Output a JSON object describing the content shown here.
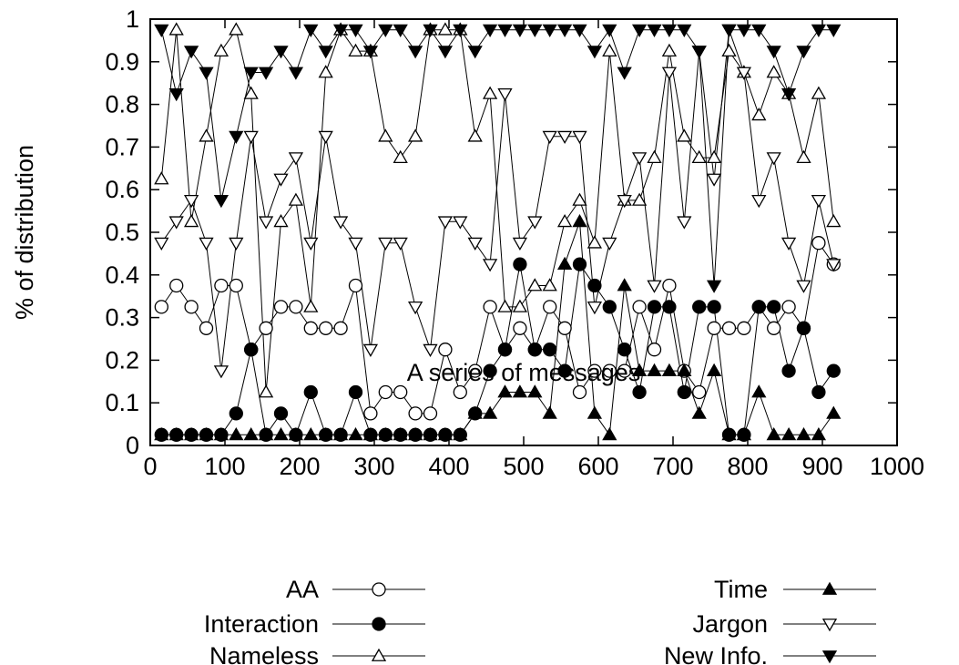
{
  "chart_data": {
    "type": "line",
    "title": "",
    "xlabel": "A series of messages",
    "ylabel": "% of distribution",
    "xlim": [
      0,
      1000
    ],
    "ylim": [
      0,
      1
    ],
    "xticks": [
      "0",
      "100",
      "200",
      "300",
      "400",
      "500",
      "600",
      "700",
      "800",
      "900",
      "1000"
    ],
    "yticks": [
      "0",
      "0.1",
      "0.2",
      "0.3",
      "0.4",
      "0.5",
      "0.6",
      "0.7",
      "0.8",
      "0.9",
      "1"
    ],
    "grid": false,
    "legend_position": "bottom",
    "x": [
      15,
      35,
      55,
      75,
      95,
      115,
      135,
      155,
      175,
      195,
      215,
      235,
      255,
      275,
      295,
      315,
      335,
      355,
      375,
      395,
      415,
      435,
      455,
      475,
      495,
      515,
      535,
      555,
      575,
      595,
      615,
      635,
      655,
      675,
      695,
      715,
      735,
      755,
      775,
      795,
      815,
      835,
      855,
      875,
      895,
      915
    ],
    "series": [
      {
        "name": "AA",
        "marker": "circle-open",
        "values": [
          0.325,
          0.375,
          0.325,
          0.275,
          0.375,
          0.375,
          0.225,
          0.275,
          0.325,
          0.325,
          0.275,
          0.275,
          0.275,
          0.375,
          0.075,
          0.125,
          0.125,
          0.075,
          0.075,
          0.225,
          0.125,
          0.175,
          0.325,
          0.225,
          0.275,
          0.225,
          0.325,
          0.275,
          0.125,
          0.175,
          0.175,
          0.175,
          0.325,
          0.225,
          0.375,
          0.175,
          0.125,
          0.275,
          0.275,
          0.275,
          0.325,
          0.275,
          0.325,
          0.275,
          0.475,
          0.425
        ]
      },
      {
        "name": "Interaction",
        "marker": "circle-filled",
        "values": [
          0.025,
          0.025,
          0.025,
          0.025,
          0.025,
          0.075,
          0.225,
          0.025,
          0.075,
          0.025,
          0.125,
          0.025,
          0.025,
          0.125,
          0.025,
          0.025,
          0.025,
          0.025,
          0.025,
          0.025,
          0.025,
          0.075,
          0.175,
          0.225,
          0.425,
          0.225,
          0.225,
          0.175,
          0.425,
          0.375,
          0.325,
          0.225,
          0.125,
          0.325,
          0.325,
          0.125,
          0.325,
          0.325,
          0.025,
          0.025,
          0.325,
          0.325,
          0.175,
          0.275,
          0.125,
          0.175
        ]
      },
      {
        "name": "Nameless",
        "marker": "triangle-up-open",
        "values": [
          0.625,
          0.975,
          0.525,
          0.725,
          0.925,
          0.975,
          0.825,
          0.125,
          0.525,
          0.575,
          0.325,
          0.875,
          0.975,
          0.925,
          0.925,
          0.725,
          0.675,
          0.725,
          0.975,
          0.975,
          0.975,
          0.725,
          0.825,
          0.325,
          0.325,
          0.375,
          0.375,
          0.525,
          0.575,
          0.475,
          0.925,
          0.575,
          0.575,
          0.675,
          0.925,
          0.725,
          0.675,
          0.675,
          0.925,
          0.875,
          0.775,
          0.875,
          0.825,
          0.675,
          0.825,
          0.525
        ]
      },
      {
        "name": "Time",
        "marker": "triangle-up-filled",
        "values": [
          0.025,
          0.025,
          0.025,
          0.025,
          0.025,
          0.025,
          0.025,
          0.025,
          0.025,
          0.025,
          0.025,
          0.025,
          0.025,
          0.025,
          0.025,
          0.025,
          0.025,
          0.025,
          0.025,
          0.025,
          0.025,
          0.075,
          0.075,
          0.125,
          0.125,
          0.125,
          0.075,
          0.425,
          0.525,
          0.075,
          0.025,
          0.375,
          0.175,
          0.175,
          0.175,
          0.175,
          0.075,
          0.175,
          0.025,
          0.025,
          0.125,
          0.025,
          0.025,
          0.025,
          0.025,
          0.075
        ]
      },
      {
        "name": "Jargon",
        "marker": "triangle-down-open",
        "values": [
          0.475,
          0.525,
          0.575,
          0.475,
          0.175,
          0.475,
          0.725,
          0.525,
          0.625,
          0.675,
          0.475,
          0.725,
          0.525,
          0.475,
          0.225,
          0.475,
          0.475,
          0.325,
          0.225,
          0.525,
          0.525,
          0.475,
          0.425,
          0.825,
          0.475,
          0.525,
          0.725,
          0.725,
          0.725,
          0.325,
          0.475,
          0.575,
          0.675,
          0.375,
          0.875,
          0.525,
          0.925,
          0.625,
          0.975,
          0.875,
          0.575,
          0.675,
          0.475,
          0.375,
          0.575,
          0.425
        ]
      },
      {
        "name": "New Info.",
        "marker": "triangle-down-filled",
        "values": [
          0.975,
          0.825,
          0.925,
          0.875,
          0.575,
          0.725,
          0.875,
          0.875,
          0.925,
          0.875,
          0.975,
          0.925,
          0.975,
          0.975,
          0.925,
          0.975,
          0.975,
          0.925,
          0.975,
          0.925,
          0.975,
          0.925,
          0.975,
          0.975,
          0.975,
          0.975,
          0.975,
          0.975,
          0.975,
          0.925,
          0.975,
          0.875,
          0.975,
          0.975,
          0.975,
          0.975,
          0.925,
          0.375,
          0.975,
          0.975,
          0.975,
          0.925,
          0.825,
          0.925,
          0.975,
          0.975
        ]
      }
    ]
  }
}
